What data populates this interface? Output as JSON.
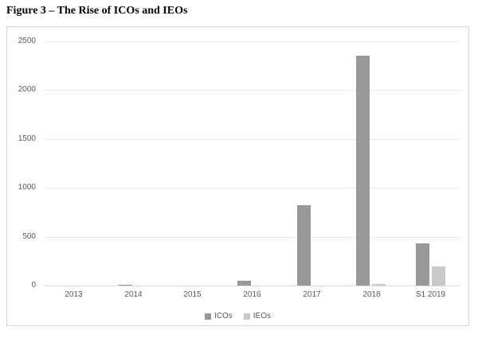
{
  "figure": {
    "title": "Figure 3 – The Rise of ICOs and IEOs"
  },
  "chart_data": {
    "type": "bar",
    "title": "Figure 3 – The Rise of ICOs and IEOs",
    "categories": [
      "2013",
      "2014",
      "2015",
      "2016",
      "2017",
      "2018",
      "S1 2019"
    ],
    "series": [
      {
        "name": "ICOs",
        "color": "#989898",
        "values": [
          0,
          8,
          0,
          50,
          820,
          2350,
          430
        ]
      },
      {
        "name": "IEOs",
        "color": "#c9c9c9",
        "values": [
          0,
          0,
          0,
          0,
          0,
          15,
          195
        ]
      }
    ],
    "xlabel": "",
    "ylabel": "",
    "ylim": [
      0,
      2500
    ],
    "ytick_step": 500,
    "yticks": [
      "0",
      "500",
      "1000",
      "1500",
      "2000",
      "2500"
    ],
    "grid": true,
    "legend_position": "bottom",
    "colors": {
      "gridline": "#e9e9e9",
      "axis_line": "#d6d6d6",
      "tick_text": "#595959",
      "frame_border": "#d5d5d5"
    }
  }
}
